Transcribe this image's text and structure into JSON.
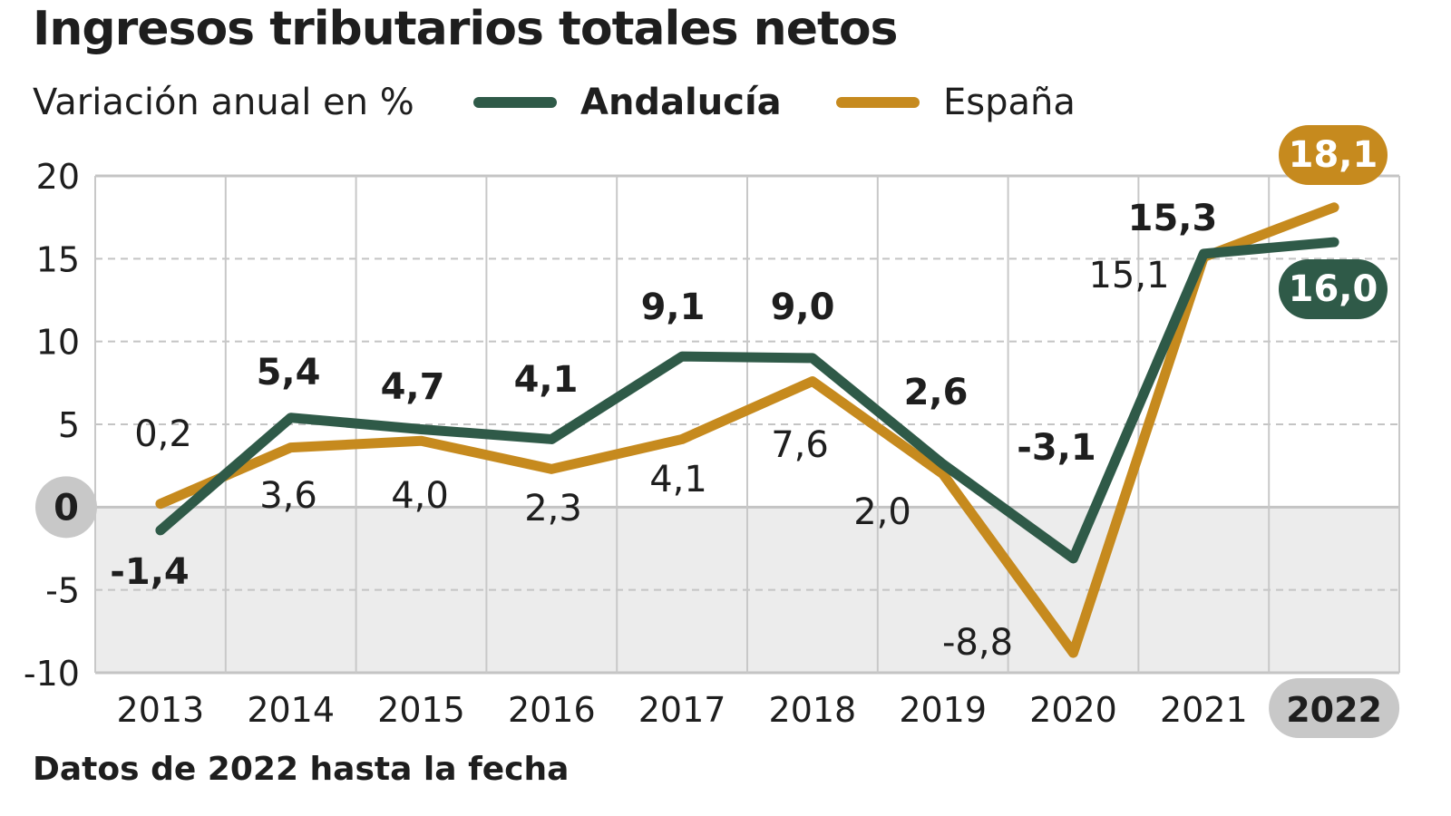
{
  "chart_data": {
    "type": "line",
    "title": "Ingresos tributarios totales netos",
    "subtitle": "Variación anual en %",
    "footnote": "Datos de 2022 hasta la fecha",
    "categories": [
      "2013",
      "2014",
      "2015",
      "2016",
      "2017",
      "2018",
      "2019",
      "2020",
      "2021",
      "2022"
    ],
    "ylim": [
      -10,
      20
    ],
    "yticks": [
      "20",
      "15",
      "10",
      "5",
      "0",
      "-5",
      "-10"
    ],
    "yticks_values": [
      20,
      15,
      10,
      5,
      0,
      -5,
      -10
    ],
    "grid": true,
    "legend_position": "top",
    "highlighted_category": "2022",
    "series": [
      {
        "name": "Andalucía",
        "color": "#2f5a48",
        "values": [
          -1.4,
          5.4,
          4.7,
          4.1,
          9.1,
          9.0,
          2.6,
          -3.1,
          15.3,
          16.0
        ],
        "labels": [
          "-1,4",
          "5,4",
          "4,7",
          "4,1",
          "9,1",
          "9,0",
          "2,6",
          "-3,1",
          "15,3",
          "16,0"
        ]
      },
      {
        "name": "España",
        "color": "#c68a1e",
        "values": [
          0.2,
          3.6,
          4.0,
          2.3,
          4.1,
          7.6,
          2.0,
          -8.8,
          15.1,
          18.1
        ],
        "labels": [
          "0,2",
          "3,6",
          "4,0",
          "2,3",
          "4,1",
          "7,6",
          "2,0",
          "-8,8",
          "15,1",
          "18,1"
        ]
      }
    ]
  }
}
